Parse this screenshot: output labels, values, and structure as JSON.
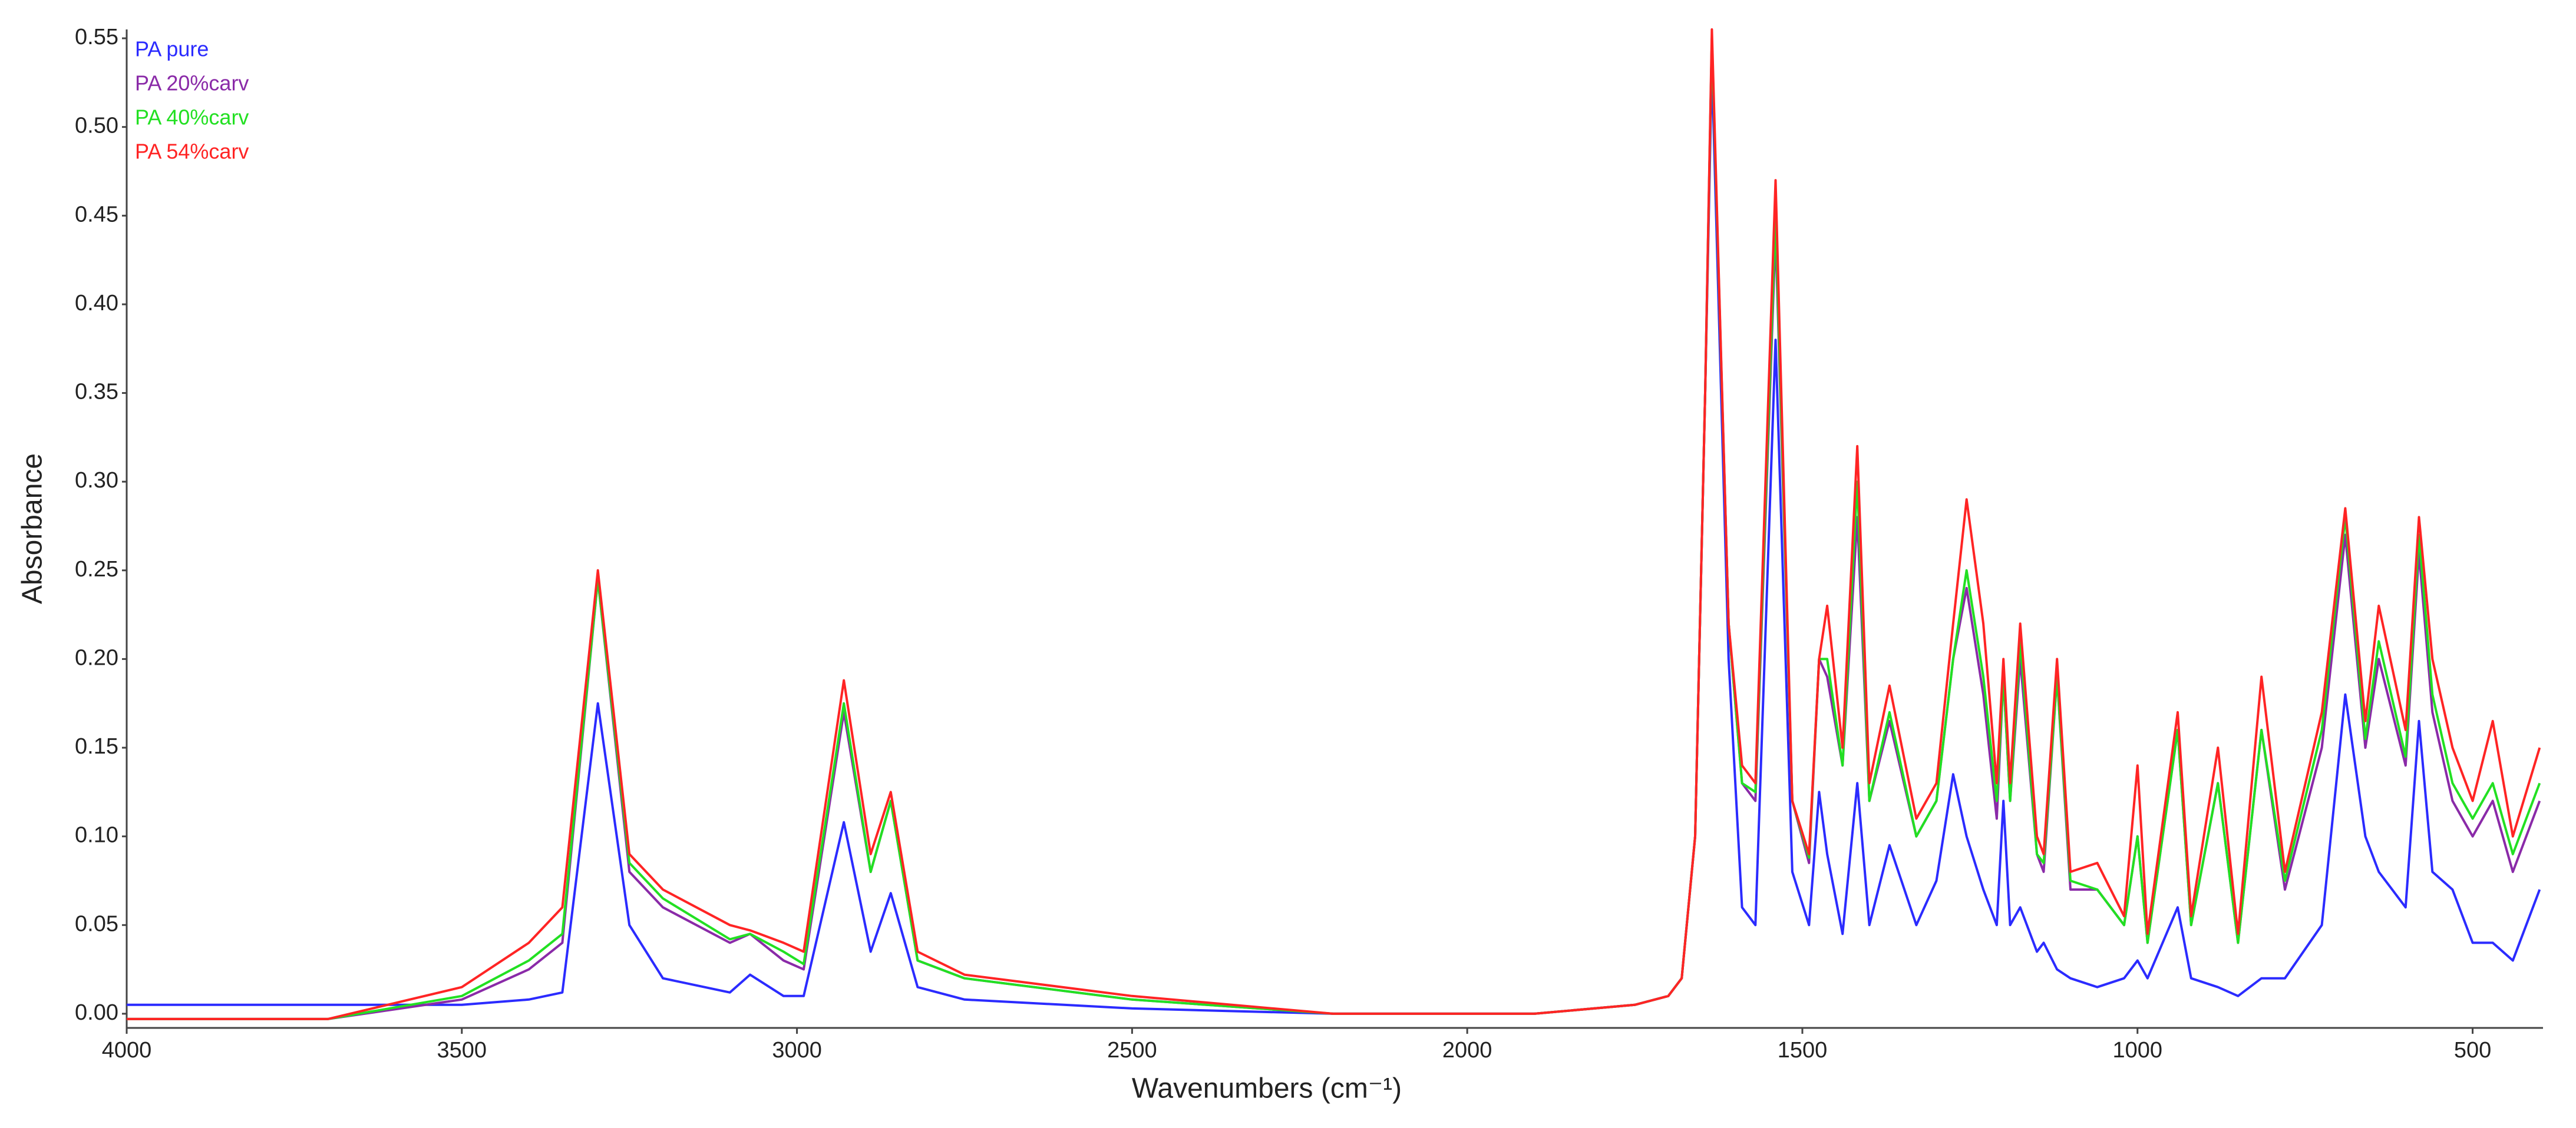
{
  "chart_data": {
    "type": "line",
    "x_label": "Wavenumbers (cm⁻¹)",
    "y_label": "Absorbance",
    "legend": "top-left",
    "grid": false,
    "xlim": [
      4000,
      395
    ],
    "ylim": [
      -0.008,
      0.555
    ],
    "xticks": [
      4000,
      3500,
      3000,
      2500,
      2000,
      1500,
      1000,
      500
    ],
    "yticks": [
      {
        "value": 0,
        "label": "0.00"
      },
      {
        "value": 0.05,
        "label": "0.05"
      },
      {
        "value": 0.1,
        "label": "0.10"
      },
      {
        "value": 0.15,
        "label": "0.15"
      },
      {
        "value": 0.2,
        "label": "0.20"
      },
      {
        "value": 0.25,
        "label": "0.25"
      },
      {
        "value": 0.3,
        "label": "0.30"
      },
      {
        "value": 0.35,
        "label": "0.35"
      },
      {
        "value": 0.4,
        "label": "0.40"
      },
      {
        "value": 0.45,
        "label": "0.45"
      },
      {
        "value": 0.5,
        "label": "0.50"
      },
      {
        "value": 0.55,
        "label": "0.55"
      }
    ],
    "x": [
      4000,
      3700,
      3500,
      3400,
      3350,
      3297,
      3250,
      3200,
      3100,
      3070,
      3020,
      2990,
      2930,
      2890,
      2860,
      2820,
      2750,
      2500,
      2200,
      1900,
      1750,
      1700,
      1680,
      1660,
      1645,
      1635,
      1610,
      1590,
      1570,
      1540,
      1515,
      1490,
      1475,
      1463,
      1440,
      1418,
      1400,
      1370,
      1330,
      1300,
      1275,
      1255,
      1230,
      1210,
      1200,
      1190,
      1175,
      1150,
      1140,
      1120,
      1100,
      1060,
      1020,
      1000,
      985,
      940,
      920,
      880,
      850,
      815,
      780,
      725,
      690,
      660,
      640,
      600,
      580,
      560,
      530,
      500,
      470,
      440,
      400
    ],
    "series": [
      {
        "name": "PA pure",
        "color": "#2b2bff",
        "values": [
          0.005,
          0.005,
          0.005,
          0.008,
          0.012,
          0.175,
          0.05,
          0.02,
          0.012,
          0.022,
          0.01,
          0.01,
          0.108,
          0.035,
          0.068,
          0.015,
          0.008,
          0.003,
          0,
          0,
          0.005,
          0.01,
          0.02,
          0.1,
          0.35,
          0.535,
          0.2,
          0.06,
          0.05,
          0.38,
          0.08,
          0.05,
          0.125,
          0.09,
          0.045,
          0.13,
          0.05,
          0.095,
          0.05,
          0.075,
          0.135,
          0.1,
          0.07,
          0.05,
          0.12,
          0.05,
          0.06,
          0.035,
          0.04,
          0.025,
          0.02,
          0.015,
          0.02,
          0.03,
          0.02,
          0.06,
          0.02,
          0.015,
          0.01,
          0.02,
          0.02,
          0.05,
          0.18,
          0.1,
          0.08,
          0.06,
          0.165,
          0.08,
          0.07,
          0.04,
          0.04,
          0.03,
          0.07
        ]
      },
      {
        "name": "PA 20%carv",
        "color": "#8a2aa8",
        "values": [
          -0.003,
          -0.003,
          0.008,
          0.025,
          0.04,
          0.245,
          0.08,
          0.06,
          0.04,
          0.045,
          0.03,
          0.025,
          0.17,
          0.08,
          0.12,
          0.03,
          0.02,
          0.008,
          0,
          0,
          0.005,
          0.01,
          0.02,
          0.1,
          0.35,
          0.55,
          0.22,
          0.13,
          0.12,
          0.44,
          0.12,
          0.085,
          0.2,
          0.19,
          0.14,
          0.28,
          0.12,
          0.165,
          0.1,
          0.12,
          0.2,
          0.24,
          0.18,
          0.11,
          0.19,
          0.12,
          0.2,
          0.09,
          0.08,
          0.19,
          0.07,
          0.07,
          0.05,
          0.1,
          0.04,
          0.16,
          0.05,
          0.13,
          0.04,
          0.16,
          0.07,
          0.15,
          0.27,
          0.15,
          0.2,
          0.14,
          0.26,
          0.17,
          0.12,
          0.1,
          0.12,
          0.08,
          0.12
        ]
      },
      {
        "name": "PA 40%carv",
        "color": "#22e022",
        "values": [
          -0.003,
          -0.003,
          0.01,
          0.03,
          0.045,
          0.245,
          0.085,
          0.065,
          0.042,
          0.045,
          0.035,
          0.028,
          0.175,
          0.08,
          0.12,
          0.03,
          0.02,
          0.008,
          0,
          0,
          0.005,
          0.01,
          0.02,
          0.1,
          0.35,
          0.55,
          0.22,
          0.13,
          0.125,
          0.45,
          0.12,
          0.088,
          0.2,
          0.2,
          0.14,
          0.3,
          0.12,
          0.17,
          0.1,
          0.12,
          0.2,
          0.25,
          0.19,
          0.12,
          0.19,
          0.12,
          0.21,
          0.09,
          0.085,
          0.19,
          0.075,
          0.07,
          0.05,
          0.1,
          0.04,
          0.16,
          0.05,
          0.13,
          0.04,
          0.16,
          0.075,
          0.16,
          0.28,
          0.155,
          0.21,
          0.145,
          0.27,
          0.18,
          0.13,
          0.11,
          0.13,
          0.09,
          0.13
        ]
      },
      {
        "name": "PA 54%carv",
        "color": "#ff2424",
        "values": [
          -0.003,
          -0.003,
          0.015,
          0.04,
          0.06,
          0.25,
          0.09,
          0.07,
          0.05,
          0.047,
          0.04,
          0.035,
          0.188,
          0.09,
          0.125,
          0.035,
          0.022,
          0.01,
          0,
          0,
          0.005,
          0.01,
          0.02,
          0.1,
          0.35,
          0.555,
          0.22,
          0.14,
          0.13,
          0.47,
          0.12,
          0.09,
          0.2,
          0.23,
          0.15,
          0.32,
          0.13,
          0.185,
          0.11,
          0.13,
          0.22,
          0.29,
          0.22,
          0.13,
          0.2,
          0.13,
          0.22,
          0.1,
          0.09,
          0.2,
          0.08,
          0.085,
          0.055,
          0.14,
          0.045,
          0.17,
          0.055,
          0.15,
          0.045,
          0.19,
          0.08,
          0.17,
          0.285,
          0.165,
          0.23,
          0.16,
          0.28,
          0.2,
          0.15,
          0.12,
          0.165,
          0.1,
          0.15
        ]
      }
    ]
  }
}
